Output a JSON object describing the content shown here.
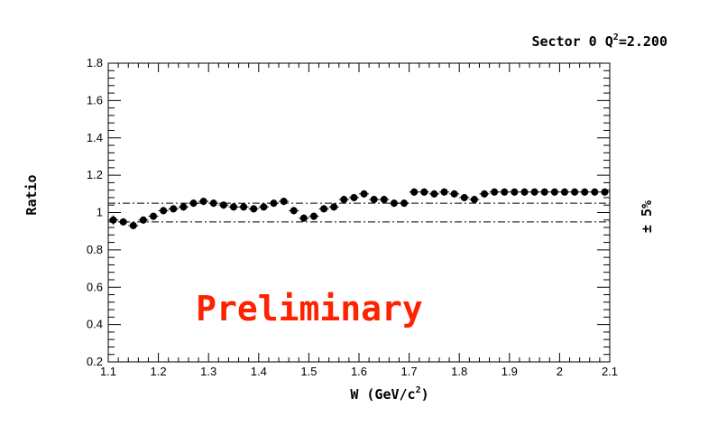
{
  "chart_data": {
    "type": "scatter",
    "title": "Sector 0 Q",
    "title_sup": "2",
    "title_suffix": "=2.200",
    "xlabel_prefix": "W (GeV/c",
    "xlabel_sup": "2",
    "xlabel_suffix": ")",
    "ylabel": "Ratio",
    "xlim": [
      1.1,
      2.1
    ],
    "ylim": [
      0.2,
      1.8
    ],
    "x_ticks": [
      1.1,
      1.2,
      1.3,
      1.4,
      1.5,
      1.6,
      1.7,
      1.8,
      1.9,
      2,
      2.1
    ],
    "y_ticks": [
      0.2,
      0.4,
      0.6,
      0.8,
      1,
      1.2,
      1.4,
      1.6,
      1.8
    ],
    "grid": false,
    "reference_lines": [
      1.05,
      0.95
    ],
    "reference_label": "± 5%",
    "watermark": "Preliminary",
    "marker_color": "#000000",
    "watermark_color": "#ff2200",
    "series": [
      {
        "x": [
          1.11,
          1.13,
          1.15,
          1.17,
          1.19,
          1.21,
          1.23,
          1.25,
          1.27,
          1.29,
          1.31,
          1.33,
          1.35,
          1.37,
          1.39,
          1.41,
          1.43,
          1.45,
          1.47,
          1.49,
          1.51,
          1.53,
          1.55,
          1.57,
          1.59,
          1.61,
          1.63,
          1.65,
          1.67,
          1.69,
          1.71,
          1.73,
          1.75,
          1.77,
          1.79,
          1.81,
          1.83,
          1.85,
          1.87,
          1.89,
          1.91,
          1.93,
          1.95,
          1.97,
          1.99,
          2.01,
          2.03,
          2.05,
          2.07,
          2.09
        ],
        "y": [
          0.96,
          0.95,
          0.93,
          0.96,
          0.98,
          1.01,
          1.02,
          1.03,
          1.05,
          1.06,
          1.05,
          1.04,
          1.03,
          1.03,
          1.02,
          1.03,
          1.05,
          1.06,
          1.01,
          0.97,
          0.98,
          1.02,
          1.03,
          1.07,
          1.08,
          1.1,
          1.07,
          1.07,
          1.05,
          1.05,
          1.11,
          1.11,
          1.1,
          1.11,
          1.1,
          1.08,
          1.07,
          1.1,
          1.11,
          1.11,
          1.11,
          1.11,
          1.11,
          1.11,
          1.11,
          1.11,
          1.11,
          1.11,
          1.11,
          1.11
        ],
        "yerr": [
          0.025,
          0.02,
          0.02,
          0.02,
          0.02,
          0.02,
          0.02,
          0.02,
          0.02,
          0.02,
          0.02,
          0.02,
          0.02,
          0.02,
          0.02,
          0.02,
          0.02,
          0.02,
          0.02,
          0.02,
          0.02,
          0.02,
          0.02,
          0.02,
          0.02,
          0.02,
          0.02,
          0.02,
          0.02,
          0.02,
          0.02,
          0.02,
          0.02,
          0.02,
          0.02,
          0.02,
          0.02,
          0.02,
          0.02,
          0.02,
          0.02,
          0.02,
          0.02,
          0.02,
          0.02,
          0.02,
          0.02,
          0.02,
          0.02,
          0.02
        ]
      }
    ]
  }
}
